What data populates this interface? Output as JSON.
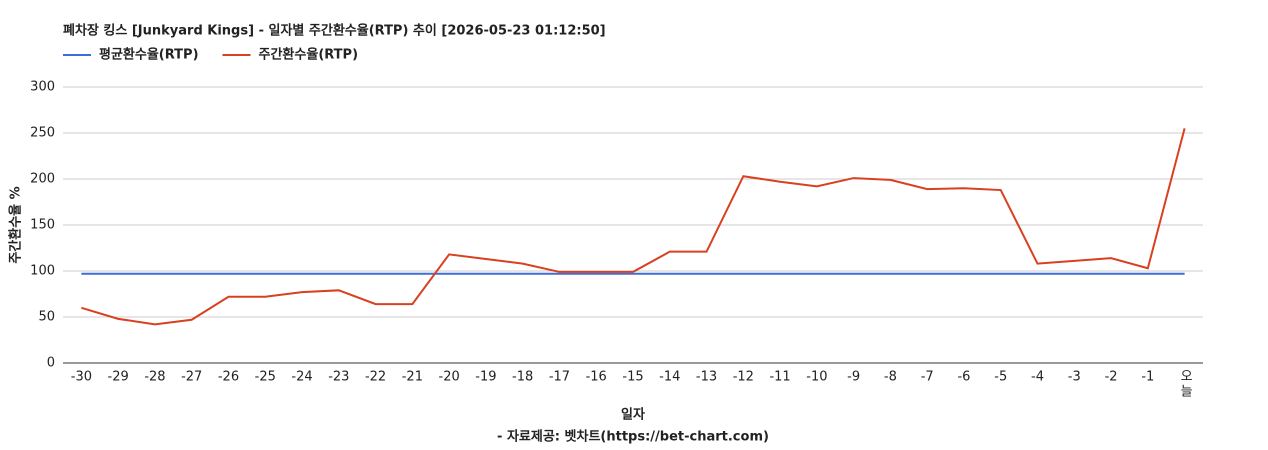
{
  "chart_data": {
    "type": "line",
    "title": "폐차장 킹스 [Junkyard Kings] - 일자별 주간환수율(RTP) 추이 [2026-05-23 01:12:50]",
    "x_label": "일자",
    "y_label": "주간환수율 %",
    "source": "- 자료제공: 벳차트(https://bet-chart.com)",
    "categories": [
      "-30",
      "-29",
      "-28",
      "-27",
      "-26",
      "-25",
      "-24",
      "-23",
      "-22",
      "-21",
      "-20",
      "-19",
      "-18",
      "-17",
      "-16",
      "-15",
      "-14",
      "-13",
      "-12",
      "-11",
      "-10",
      "-9",
      "-8",
      "-7",
      "-6",
      "-5",
      "-4",
      "-3",
      "-2",
      "-1",
      "오늘"
    ],
    "series": [
      {
        "name": "평균환수율(RTP)",
        "color": "#3b6fd6",
        "values": [
          97,
          97,
          97,
          97,
          97,
          97,
          97,
          97,
          97,
          97,
          97,
          97,
          97,
          97,
          97,
          97,
          97,
          97,
          97,
          97,
          97,
          97,
          97,
          97,
          97,
          97,
          97,
          97,
          97,
          97,
          97
        ]
      },
      {
        "name": "주간환수율(RTP)",
        "color": "#d9401f",
        "values": [
          60,
          48,
          42,
          47,
          72,
          72,
          77,
          79,
          64,
          64,
          118,
          113,
          108,
          99,
          99,
          99,
          121,
          121,
          203,
          197,
          192,
          201,
          199,
          189,
          190,
          188,
          108,
          111,
          114,
          103,
          255
        ]
      }
    ],
    "ylim": [
      0,
      300
    ],
    "yticks": [
      0,
      50,
      100,
      150,
      200,
      250,
      300
    ],
    "grid": true
  }
}
